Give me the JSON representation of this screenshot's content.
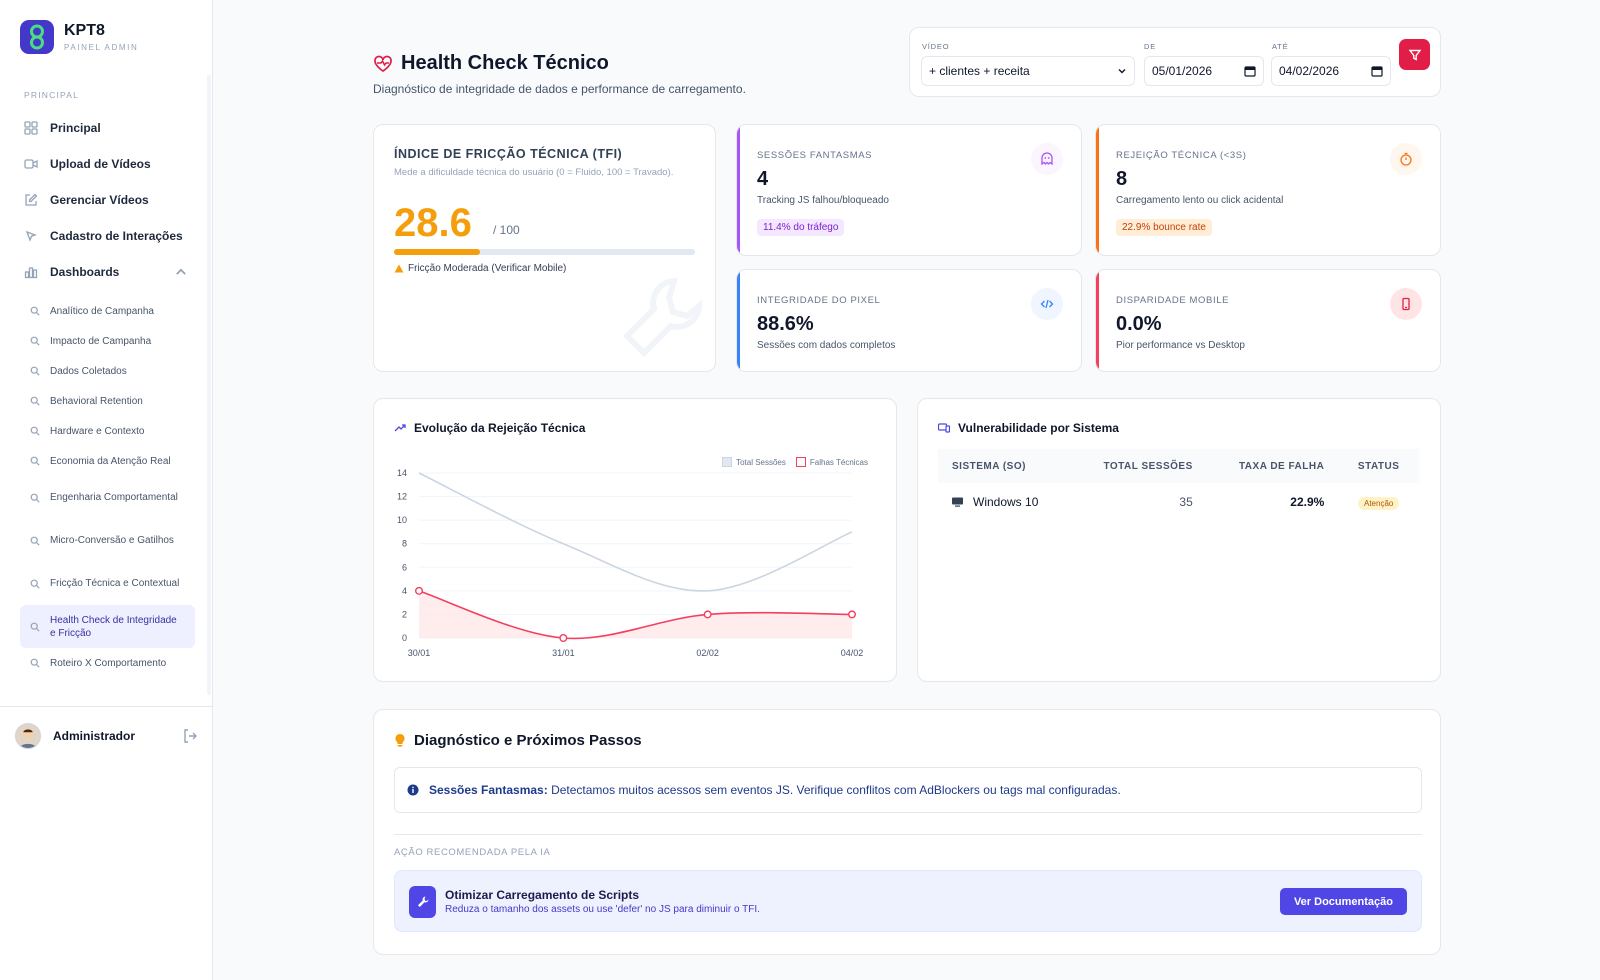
{
  "brand": {
    "name": "KPT8",
    "subtitle": "PAINEL ADMIN"
  },
  "sidebar": {
    "section": "PRINCIPAL",
    "items": [
      {
        "label": "Principal"
      },
      {
        "label": "Upload de Vídeos"
      },
      {
        "label": "Gerenciar Vídeos"
      },
      {
        "label": "Cadastro de Interações"
      },
      {
        "label": "Dashboards"
      }
    ],
    "sub_items": [
      "Analítico de Campanha",
      "Impacto de Campanha",
      "Dados Coletados",
      "Behavioral Retention",
      "Hardware e Contexto",
      "Economia da Atenção Real",
      "Engenharia Comportamental",
      "Micro-Conversão e Gatilhos",
      "Fricção Técnica e Contextual",
      "Health Check de Integridade e Fricção",
      "Roteiro X Comportamento"
    ],
    "active_sub": "Health Check de Integridade e Fricção",
    "user": "Administrador"
  },
  "header": {
    "title": "Health Check Técnico",
    "subtitle": "Diagnóstico de integridade de dados e performance de carregamento."
  },
  "filters": {
    "video_label": "VÍDEO",
    "video_value": "+ clientes + receita",
    "from_label": "DE",
    "from_value": "05/01/2026",
    "to_label": "ATÉ",
    "to_value": "04/02/2026"
  },
  "tfi": {
    "title": "ÍNDICE DE FRICÇÃO TÉCNICA (TFI)",
    "desc": "Mede a dificuldade técnica do usuário (0 = Fluido, 100 = Travado).",
    "value": "28.6",
    "of": "/ 100",
    "progress": 28.6,
    "warning": "Fricção Moderada (Verificar Mobile)"
  },
  "kpis": [
    {
      "label": "SESSÕES FANTASMAS",
      "value": "4",
      "desc": "Tracking JS falhou/bloqueado",
      "badge": "11.4% do tráfego",
      "color": "#a855f7"
    },
    {
      "label": "REJEIÇÃO TÉCNICA (<3S)",
      "value": "8",
      "desc": "Carregamento lento ou click acidental",
      "badge": "22.9% bounce rate",
      "color": "#f97316"
    },
    {
      "label": "INTEGRIDADE DO PIXEL",
      "value": "88.6%",
      "desc": "Sessões com dados completos",
      "color": "#3b82f6"
    },
    {
      "label": "DISPARIDADE MOBILE",
      "value": "0.0%",
      "desc": "Pior performance vs Desktop",
      "color": "#f43f5e"
    }
  ],
  "chart_data": {
    "type": "line",
    "title": "Evolução da Rejeição Técnica",
    "categories": [
      "30/01",
      "31/01",
      "02/02",
      "04/02"
    ],
    "series": [
      {
        "name": "Total Sessões",
        "values": [
          14,
          8,
          4,
          9
        ],
        "color": "#cbd5e1"
      },
      {
        "name": "Falhas Técnicas",
        "values": [
          4,
          0,
          2,
          2
        ],
        "color": "#f43f5e"
      }
    ],
    "yticks": [
      0,
      2,
      4,
      6,
      8,
      10,
      12,
      14
    ],
    "ylim": [
      0,
      14
    ]
  },
  "vuln": {
    "title": "Vulnerabilidade por Sistema",
    "headers": [
      "SISTEMA (SO)",
      "TOTAL SESSÕES",
      "TAXA DE FALHA",
      "STATUS"
    ],
    "rows": [
      {
        "os": "Windows 10",
        "sessions": "35",
        "rate": "22.9%",
        "status": "Atenção"
      }
    ]
  },
  "diagnostic": {
    "title": "Diagnóstico e Próximos Passos",
    "alert_bold": "Sessões Fantasmas:",
    "alert_text": "Detectamos muitos acessos sem eventos JS. Verifique conflitos com AdBlockers ou tags mal configuradas.",
    "ai_label": "AÇÃO RECOMENDADA PELA IA",
    "ai_title": "Otimizar Carregamento de Scripts",
    "ai_desc": "Reduza o tamanho dos assets ou use 'defer' no JS para diminuir o TFI.",
    "ai_button": "Ver Documentação"
  }
}
